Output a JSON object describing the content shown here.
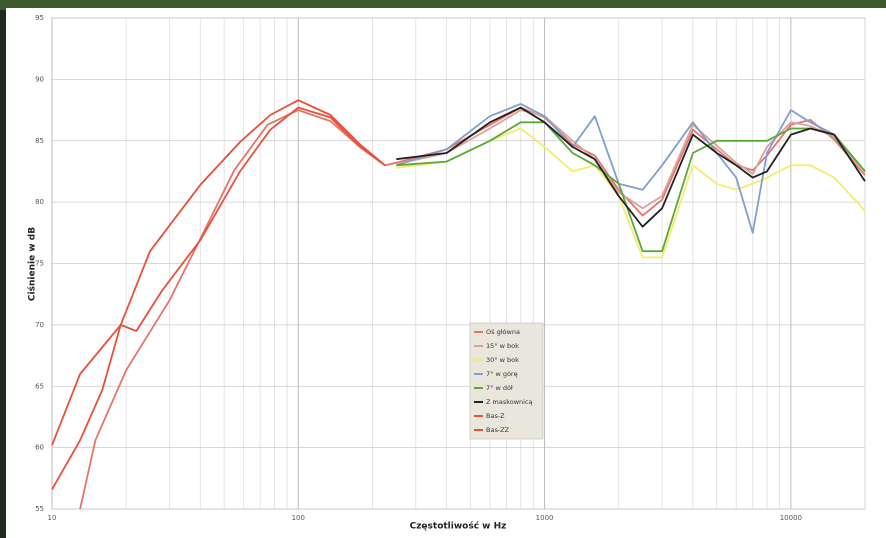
{
  "chart_data": {
    "type": "line",
    "x_label": "Częstotliwość w Hz",
    "y_label": "Ciśnienie w dB",
    "xlim": [
      10,
      20000
    ],
    "xticks": [
      10,
      100,
      1000,
      10000
    ],
    "log_x": true,
    "ylim": [
      55,
      95
    ],
    "yticks": [
      55,
      60,
      65,
      70,
      75,
      80,
      85,
      90,
      95
    ],
    "grid": true,
    "minor_grid": true,
    "legend": "center",
    "series": [
      {
        "name": "Oś główna",
        "color": "#e8736a",
        "x": [
          13,
          15,
          20,
          30,
          40,
          55,
          75,
          100,
          135,
          178,
          225,
          250,
          400,
          600,
          800,
          1000,
          1300,
          1600,
          2000,
          2500,
          3000,
          4000,
          5000,
          6000,
          7000,
          8000,
          10000,
          12000,
          15000,
          20000
        ],
        "values": [
          55,
          60.6,
          66.3,
          72,
          77,
          82.6,
          86.3,
          87.5,
          86.6,
          84.5,
          83,
          83.2,
          84.3,
          86.3,
          87.7,
          86.9,
          84.7,
          83.8,
          81,
          78.9,
          80.2,
          85.9,
          84.3,
          83,
          82.6,
          83.8,
          86.3,
          86.7,
          85.1,
          82.2
        ]
      },
      {
        "name": "15° w bok",
        "color": "#d9a39c",
        "x": [
          250,
          400,
          600,
          800,
          1000,
          1300,
          1600,
          2000,
          2500,
          3000,
          4000,
          5000,
          6000,
          7000,
          8000,
          10000,
          12000,
          15000,
          20000
        ],
        "values": [
          83.1,
          84,
          86,
          87.5,
          87,
          85,
          83.5,
          80.8,
          79.5,
          80.5,
          86.3,
          84.6,
          83.2,
          82.3,
          84.5,
          86.5,
          86.2,
          85.3,
          82.5
        ]
      },
      {
        "name": "30° w bok",
        "color": "#f5ec6a",
        "x": [
          250,
          400,
          600,
          800,
          1000,
          1300,
          1600,
          2000,
          2500,
          3000,
          4000,
          5000,
          6000,
          7000,
          8000,
          10000,
          12000,
          15000,
          20000
        ],
        "values": [
          82.8,
          83.3,
          85,
          86,
          84.5,
          82.5,
          83,
          80.5,
          75.5,
          75.5,
          83,
          81.5,
          81,
          81.5,
          82,
          83,
          83,
          82,
          79.3
        ]
      },
      {
        "name": "7° w górę",
        "color": "#7f9fcf",
        "x": [
          250,
          400,
          600,
          800,
          1000,
          1300,
          1600,
          2000,
          2500,
          3000,
          4000,
          5000,
          6000,
          7000,
          8000,
          10000,
          12000,
          15000,
          20000
        ],
        "values": [
          83,
          84.3,
          87,
          88,
          87,
          84.5,
          87,
          81.5,
          81,
          83,
          86.5,
          84,
          82,
          77.5,
          84,
          87.5,
          86.5,
          85.5,
          82.5
        ]
      },
      {
        "name": "7° w dół",
        "color": "#5aa83a",
        "x": [
          250,
          400,
          600,
          800,
          1000,
          1300,
          1600,
          2000,
          2500,
          3000,
          4000,
          5000,
          6000,
          7000,
          8000,
          10000,
          12000,
          15000,
          20000
        ],
        "values": [
          83,
          83.3,
          85,
          86.5,
          86.5,
          84,
          83,
          81.5,
          76,
          76,
          84,
          85,
          85,
          85,
          85,
          86,
          86,
          85.5,
          82.5
        ]
      },
      {
        "name": "Z maskownicą",
        "color": "#222222",
        "x": [
          250,
          400,
          600,
          800,
          1000,
          1300,
          1600,
          2000,
          2500,
          3000,
          4000,
          5000,
          6000,
          7000,
          8000,
          10000,
          12000,
          15000,
          20000
        ],
        "values": [
          83.5,
          84,
          86.5,
          87.7,
          86.5,
          84.5,
          83.5,
          80.5,
          78,
          79.5,
          85.5,
          84,
          83,
          82,
          82.5,
          85.5,
          86,
          85.5,
          81.7
        ]
      },
      {
        "name": "Bas-Z",
        "color": "#e8503a",
        "x": [
          10,
          13,
          19,
          25,
          40,
          58,
          77,
          100,
          135,
          178,
          225
        ],
        "values": [
          60.2,
          66,
          70,
          76,
          81.4,
          84.9,
          87.1,
          88.3,
          87.1,
          84.7,
          83
        ]
      },
      {
        "name": "Bas-ZZ",
        "color": "#e8503a",
        "x": [
          10,
          13,
          16,
          19,
          22,
          28,
          40,
          58,
          77,
          100,
          135,
          178,
          225
        ],
        "values": [
          56.6,
          60.6,
          64.7,
          70,
          69.5,
          72.8,
          76.9,
          82.5,
          85.9,
          87.7,
          86.9,
          84.5,
          83
        ]
      }
    ]
  }
}
